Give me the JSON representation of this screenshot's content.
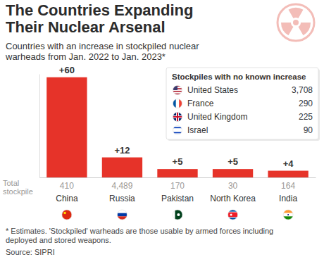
{
  "chart_data": {
    "type": "bar",
    "title": "The Countries Expanding Their Nuclear Arsenal",
    "subtitle": "Countries with an increase in stockpiled nuclear warheads from Jan. 2022 to Jan. 2023*",
    "categories": [
      "China",
      "Russia",
      "Pakistan",
      "North Korea",
      "India"
    ],
    "values": [
      60,
      12,
      5,
      5,
      4
    ],
    "value_labels": [
      "+60",
      "+12",
      "+5",
      "+5",
      "+4"
    ],
    "color": "#e63329",
    "ylim": [
      0,
      62
    ],
    "yticks": [],
    "grid": false,
    "data_labels": true,
    "tick_labels": "x",
    "total_stockpile": {
      "label": "Total stockpile",
      "values": [
        410,
        4489,
        170,
        30,
        164
      ],
      "value_labels": [
        "410",
        "4,489",
        "170",
        "30",
        "164"
      ]
    },
    "no_increase": {
      "title": "Stockpiles with no known increase",
      "categories": [
        "United States",
        "France",
        "United Kingdom",
        "Israel"
      ],
      "values": [
        3708,
        290,
        225,
        90
      ],
      "value_labels": [
        "3,708",
        "290",
        "225",
        "90"
      ]
    },
    "footnote": "* Estimates. 'Stockpiled' warheads are those usable by armed forces including deployed and stored weapons.",
    "source": "Source: SIPRI"
  }
}
